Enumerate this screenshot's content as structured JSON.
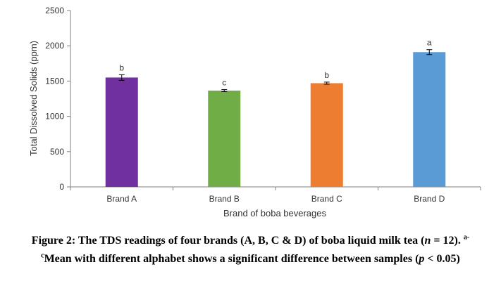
{
  "chart_data": {
    "type": "bar",
    "categories": [
      "Brand A",
      "Brand B",
      "Brand C",
      "Brand D"
    ],
    "values": [
      1550,
      1365,
      1470,
      1910
    ],
    "errors": [
      40,
      15,
      15,
      35
    ],
    "significance": [
      "b",
      "c",
      "b",
      "a"
    ],
    "colors": [
      "#7030A0",
      "#70AD47",
      "#ED7D31",
      "#5B9BD5"
    ],
    "xlabel": "Brand of boba beverages",
    "ylabel": "Total Dissolved Solids (ppm)",
    "ylim": [
      0,
      2500
    ],
    "yticks": [
      0,
      500,
      1000,
      1500,
      2000,
      2500
    ],
    "grid": false,
    "legend": "none"
  },
  "caption": {
    "prefix": "Figure 2: The TDS readings of four brands (A, B, C & D) of boba liquid milk tea (",
    "n_var": "n",
    "n_value": " = 12). ",
    "sup1": "a-",
    "sup2": "c",
    "middle": "Mean with different alphabet shows a significant difference between samples (",
    "p_var": "p",
    "end": " < 0.05)"
  }
}
